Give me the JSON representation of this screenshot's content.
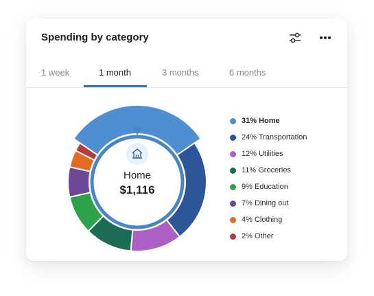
{
  "card": {
    "title": "Spending by category",
    "filter_icon": "sliders-icon",
    "more_icon": "more-horizontal-icon"
  },
  "tabs": [
    {
      "label": "1 week",
      "active": false
    },
    {
      "label": "1 month",
      "active": true
    },
    {
      "label": "3 months",
      "active": false
    },
    {
      "label": "6 months",
      "active": false
    }
  ],
  "center": {
    "icon": "home-icon",
    "label": "Home",
    "amount": "$1,116"
  },
  "colors": {
    "accent": "#3c6fa3",
    "ring": "#4a86c4"
  },
  "chart_data": {
    "type": "pie",
    "categories": [
      "Home",
      "Transportation",
      "Utilities",
      "Groceries",
      "Education",
      "Dining out",
      "Clothing",
      "Other"
    ],
    "values": [
      31,
      24,
      12,
      11,
      9,
      7,
      4,
      2
    ],
    "colors": [
      "#4d8fd0",
      "#2c5697",
      "#ad5fc3",
      "#1c6b55",
      "#2ea24a",
      "#6e4896",
      "#e06c22",
      "#b83b3b"
    ],
    "selected": "Home",
    "legend": [
      "31% Home",
      "24% Transportation",
      "12% Utilities",
      "11% Groceries",
      "9% Education",
      "7% Dining out",
      "4% Clothing",
      "2% Other"
    ],
    "legend_position": "right"
  }
}
